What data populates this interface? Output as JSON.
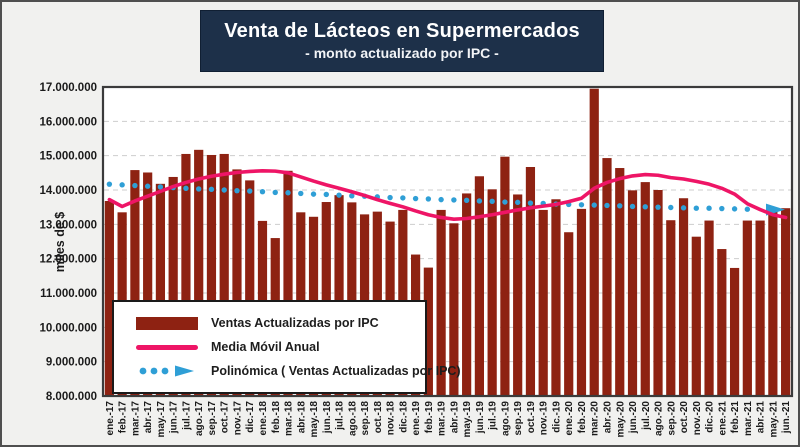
{
  "title": {
    "line1": "Venta de Lácteos en Supermercados",
    "line2": "- monto actualizado por IPC -"
  },
  "y_axis": {
    "label": "miles de $",
    "values": [
      8000000,
      9000000,
      10000000,
      11000000,
      12000000,
      13000000,
      14000000,
      15000000,
      16000000,
      17000000
    ],
    "tick_labels": [
      "8.000.000",
      "9.000.000",
      "10.000.000",
      "11.000.000",
      "12.000.000",
      "13.000.000",
      "14.000.000",
      "15.000.000",
      "16.000.000",
      "17.000.000"
    ]
  },
  "legend": {
    "items": [
      {
        "label": "Ventas Actualizadas por IPC",
        "marker": "bar-swatch"
      },
      {
        "label": "Media Móvil Anual",
        "marker": "line-swatch"
      },
      {
        "label": "Polinómica ( Ventas Actualizadas por IPC)",
        "marker": "dotted-arrow-swatch"
      }
    ]
  },
  "colors": {
    "bar": "#8e2212",
    "moving_average_line": "#ee1566",
    "polynomial_dots": "#2f9fd6",
    "title_background": "#1d3049",
    "plot_border": "#3b3b3b",
    "gridline": "#cdcdcd",
    "axis_text": "#1a1a1a",
    "page_background": "#f1f1ef"
  },
  "chart_data": {
    "type": "bar",
    "title": "Venta de Lácteos en Supermercados",
    "subtitle": "- monto actualizado por IPC -",
    "xlabel": "",
    "ylabel": "miles de $",
    "ylim": [
      8000000,
      17000000
    ],
    "grid": true,
    "legend_position": "bottom-left-inside",
    "categories": [
      "ene.-17",
      "feb.-17",
      "mar.-17",
      "abr.-17",
      "may.-17",
      "jun.-17",
      "jul.-17",
      "ago.-17",
      "sep.-17",
      "oct.-17",
      "nov.-17",
      "dic.-17",
      "ene.-18",
      "feb.-18",
      "mar.-18",
      "abr.-18",
      "may.-18",
      "jun.-18",
      "jul.-18",
      "ago.-18",
      "sep.-18",
      "oct.-18",
      "nov.-18",
      "dic.-18",
      "ene.-19",
      "feb.-19",
      "mar.-19",
      "abr.-19",
      "may.-19",
      "jun.-19",
      "jul.-19",
      "ago.-19",
      "sep.-19",
      "oct.-19",
      "nov.-19",
      "dic.-19",
      "ene.-20",
      "feb.-20",
      "mar.-20",
      "abr.-20",
      "may.-20",
      "jun.-20",
      "jul.-20",
      "ago.-20",
      "sep.-20",
      "oct.-20",
      "nov.-20",
      "dic.-20",
      "ene.-21",
      "feb.-21",
      "mar.-21",
      "abr.-21",
      "may.-21",
      "jun.-21"
    ],
    "series": [
      {
        "name": "Ventas Actualizadas por IPC",
        "type": "bar",
        "color": "#8e2212",
        "values": [
          13680000,
          13350000,
          14580000,
          14510000,
          14180000,
          14380000,
          15050000,
          15170000,
          15020000,
          15050000,
          14600000,
          14280000,
          13100000,
          12600000,
          14560000,
          13350000,
          13220000,
          13650000,
          13850000,
          13640000,
          13290000,
          13370000,
          13080000,
          13420000,
          12120000,
          11740000,
          13420000,
          13030000,
          13900000,
          14400000,
          14020000,
          14970000,
          13870000,
          14670000,
          13420000,
          13730000,
          12770000,
          13450000,
          16950000,
          14930000,
          14640000,
          13990000,
          14230000,
          14000000,
          13120000,
          13760000,
          12640000,
          13110000,
          12280000,
          11730000,
          13110000,
          13110000,
          13450000,
          13470000
        ]
      },
      {
        "name": "Media Móvil Anual",
        "type": "line",
        "color": "#ee1566",
        "values": [
          13720000,
          13520000,
          13680000,
          13820000,
          13960000,
          14100000,
          14220000,
          14320000,
          14400000,
          14460000,
          14510000,
          14540000,
          14560000,
          14550000,
          14500000,
          14380000,
          14260000,
          14150000,
          14050000,
          13950000,
          13840000,
          13720000,
          13610000,
          13510000,
          13390000,
          13280000,
          13200000,
          13150000,
          13170000,
          13220000,
          13280000,
          13350000,
          13420000,
          13480000,
          13530000,
          13580000,
          13660000,
          13760000,
          14050000,
          14220000,
          14330000,
          14410000,
          14450000,
          14430000,
          14360000,
          14320000,
          14250000,
          14170000,
          14050000,
          13880000,
          13600000,
          13430000,
          13280000,
          13200000
        ]
      },
      {
        "name": "Polinómica ( Ventas Actualizadas por IPC)",
        "type": "dotted-line-with-arrow",
        "color": "#2f9fd6",
        "values": [
          14170000,
          14150000,
          14130000,
          14110000,
          14090000,
          14070000,
          14050000,
          14030000,
          14020000,
          14000000,
          13980000,
          13970000,
          13950000,
          13930000,
          13920000,
          13900000,
          13880000,
          13870000,
          13850000,
          13830000,
          13820000,
          13800000,
          13780000,
          13770000,
          13750000,
          13740000,
          13720000,
          13710000,
          13700000,
          13680000,
          13670000,
          13650000,
          13640000,
          13620000,
          13610000,
          13590000,
          13580000,
          13570000,
          13560000,
          13550000,
          13540000,
          13520000,
          13510000,
          13500000,
          13490000,
          13480000,
          13470000,
          13470000,
          13460000,
          13450000,
          13440000,
          13430000,
          13430000,
          13420000
        ]
      }
    ]
  }
}
